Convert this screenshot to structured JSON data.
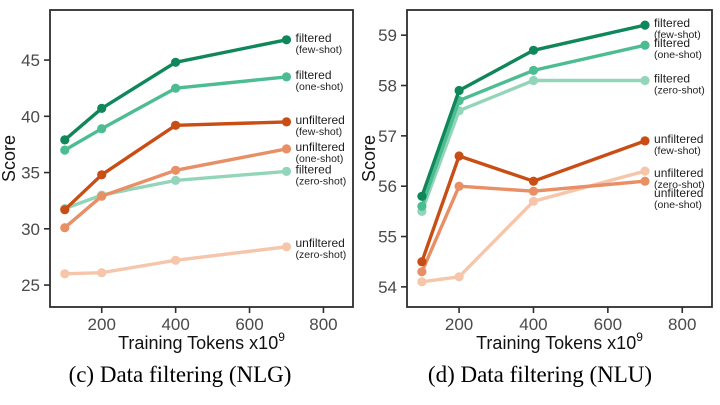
{
  "page": {
    "background": "#ffffff"
  },
  "chart_data": [
    {
      "type": "line",
      "caption": "(c) Data filtering (NLG)",
      "xlabel": "Training Tokens x10",
      "xlabel_exponent": "9",
      "ylabel": "Score",
      "x": [
        100,
        200,
        400,
        700
      ],
      "xtick_values": [
        200,
        400,
        600,
        800
      ],
      "xtick_labels": [
        "200",
        "400",
        "600",
        "800"
      ],
      "ytick_values": [
        25,
        30,
        35,
        40,
        45
      ],
      "ytick_labels": [
        "25",
        "30",
        "35",
        "40",
        "45"
      ],
      "xlim": [
        60,
        880
      ],
      "ylim": [
        23.05,
        49.45
      ],
      "grid": false,
      "legend_position": "right-of-last-point",
      "series": [
        {
          "name": "filtered",
          "shot": "(few-shot)",
          "color": "#0f875a",
          "values": [
            37.9,
            40.7,
            44.8,
            46.8
          ],
          "z": 3,
          "label_dy": 0
        },
        {
          "name": "filtered",
          "shot": "(one-shot)",
          "color": "#4cbd92",
          "values": [
            37.0,
            38.9,
            42.5,
            43.5
          ],
          "z": 2,
          "label_dy": 0
        },
        {
          "name": "unfiltered",
          "shot": "(few-shot)",
          "color": "#c84e15",
          "values": [
            31.7,
            34.8,
            39.2,
            39.5
          ],
          "z": 6,
          "label_dy": 0
        },
        {
          "name": "unfiltered",
          "shot": "(one-shot)",
          "color": "#e88f66",
          "values": [
            30.1,
            32.9,
            35.2,
            37.1
          ],
          "z": 5,
          "label_dy": 0
        },
        {
          "name": "filtered",
          "shot": "(zero-shot)",
          "color": "#93d5b9",
          "values": [
            31.8,
            33.0,
            34.3,
            35.1
          ],
          "z": 1,
          "label_dy": 0
        },
        {
          "name": "unfiltered",
          "shot": "(zero-shot)",
          "color": "#f6c6aa",
          "values": [
            26.0,
            26.1,
            27.2,
            28.4
          ],
          "z": 4,
          "label_dy": -2
        }
      ]
    },
    {
      "type": "line",
      "caption": "(d) Data filtering (NLU)",
      "xlabel": "Training Tokens x10",
      "xlabel_exponent": "9",
      "ylabel": "Score",
      "x": [
        100,
        200,
        400,
        700
      ],
      "xtick_values": [
        200,
        400,
        600,
        800
      ],
      "xtick_labels": [
        "200",
        "400",
        "600",
        "800"
      ],
      "ytick_values": [
        54,
        55,
        56,
        57,
        58,
        59
      ],
      "ytick_labels": [
        "54",
        "55",
        "56",
        "57",
        "58",
        "59"
      ],
      "xlim": [
        60,
        880
      ],
      "ylim": [
        53.6,
        59.5
      ],
      "grid": false,
      "legend_position": "right-of-last-point",
      "series": [
        {
          "name": "filtered",
          "shot": "(few-shot)",
          "color": "#0f875a",
          "values": [
            55.8,
            57.9,
            58.7,
            59.2
          ],
          "z": 3,
          "label_dy": 0
        },
        {
          "name": "filtered",
          "shot": "(one-shot)",
          "color": "#4cbd92",
          "values": [
            55.6,
            57.7,
            58.3,
            58.8
          ],
          "z": 2,
          "label_dy": 0
        },
        {
          "name": "filtered",
          "shot": "(zero-shot)",
          "color": "#93d5b9",
          "values": [
            55.5,
            57.5,
            58.1,
            58.1
          ],
          "z": 1,
          "label_dy": 0
        },
        {
          "name": "unfiltered",
          "shot": "(few-shot)",
          "color": "#c84e15",
          "values": [
            54.5,
            56.6,
            56.1,
            56.9
          ],
          "z": 6,
          "label_dy": 0
        },
        {
          "name": "unfiltered",
          "shot": "(zero-shot)",
          "color": "#f6c6aa",
          "values": [
            54.1,
            54.2,
            55.7,
            56.3
          ],
          "z": 4,
          "label_dy": 4
        },
        {
          "name": "unfiltered",
          "shot": "(one-shot)",
          "color": "#e88f66",
          "values": [
            54.3,
            56.0,
            55.9,
            56.1
          ],
          "z": 5,
          "label_dy": 14
        }
      ]
    }
  ],
  "style_colors": {
    "axis": "#2e2e2e",
    "tick_label": "#4a4a4a",
    "series_label_text": "#1f1f1f"
  }
}
